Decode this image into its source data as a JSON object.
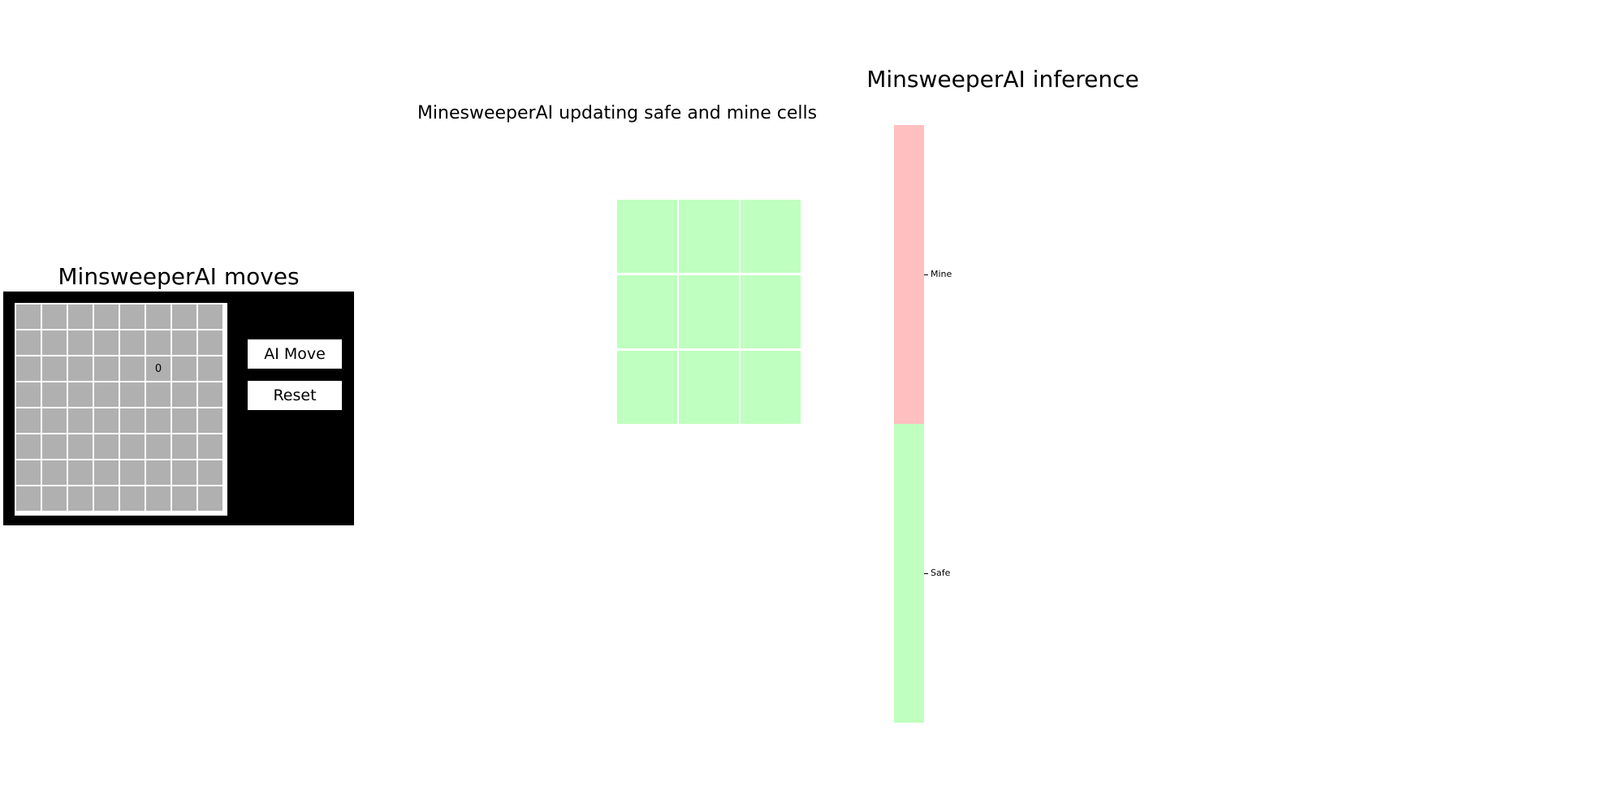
{
  "moves_panel": {
    "title": "MinsweeperAI moves",
    "board": {
      "rows": 8,
      "cols": 8,
      "revealed": [
        {
          "row": 2,
          "col": 5,
          "value": "0"
        }
      ]
    },
    "buttons": {
      "ai_move": "AI Move",
      "reset": "Reset"
    },
    "colors": {
      "panel_bg": "#000000",
      "cell": "#b0b0b0",
      "grid_line": "#ffffff",
      "button_bg": "#ffffff"
    }
  },
  "update_panel": {
    "title": "MinesweeperAI updating safe and mine cells",
    "grid": {
      "rows": 3,
      "cols": 3,
      "cell_state": "safe"
    },
    "colors": {
      "safe": "#bfffbf"
    }
  },
  "inference_panel": {
    "title": "MinsweeperAI inference",
    "legend": [
      {
        "label": "Mine",
        "color": "#ffbfbf"
      },
      {
        "label": "Safe",
        "color": "#bfffbf"
      }
    ]
  }
}
